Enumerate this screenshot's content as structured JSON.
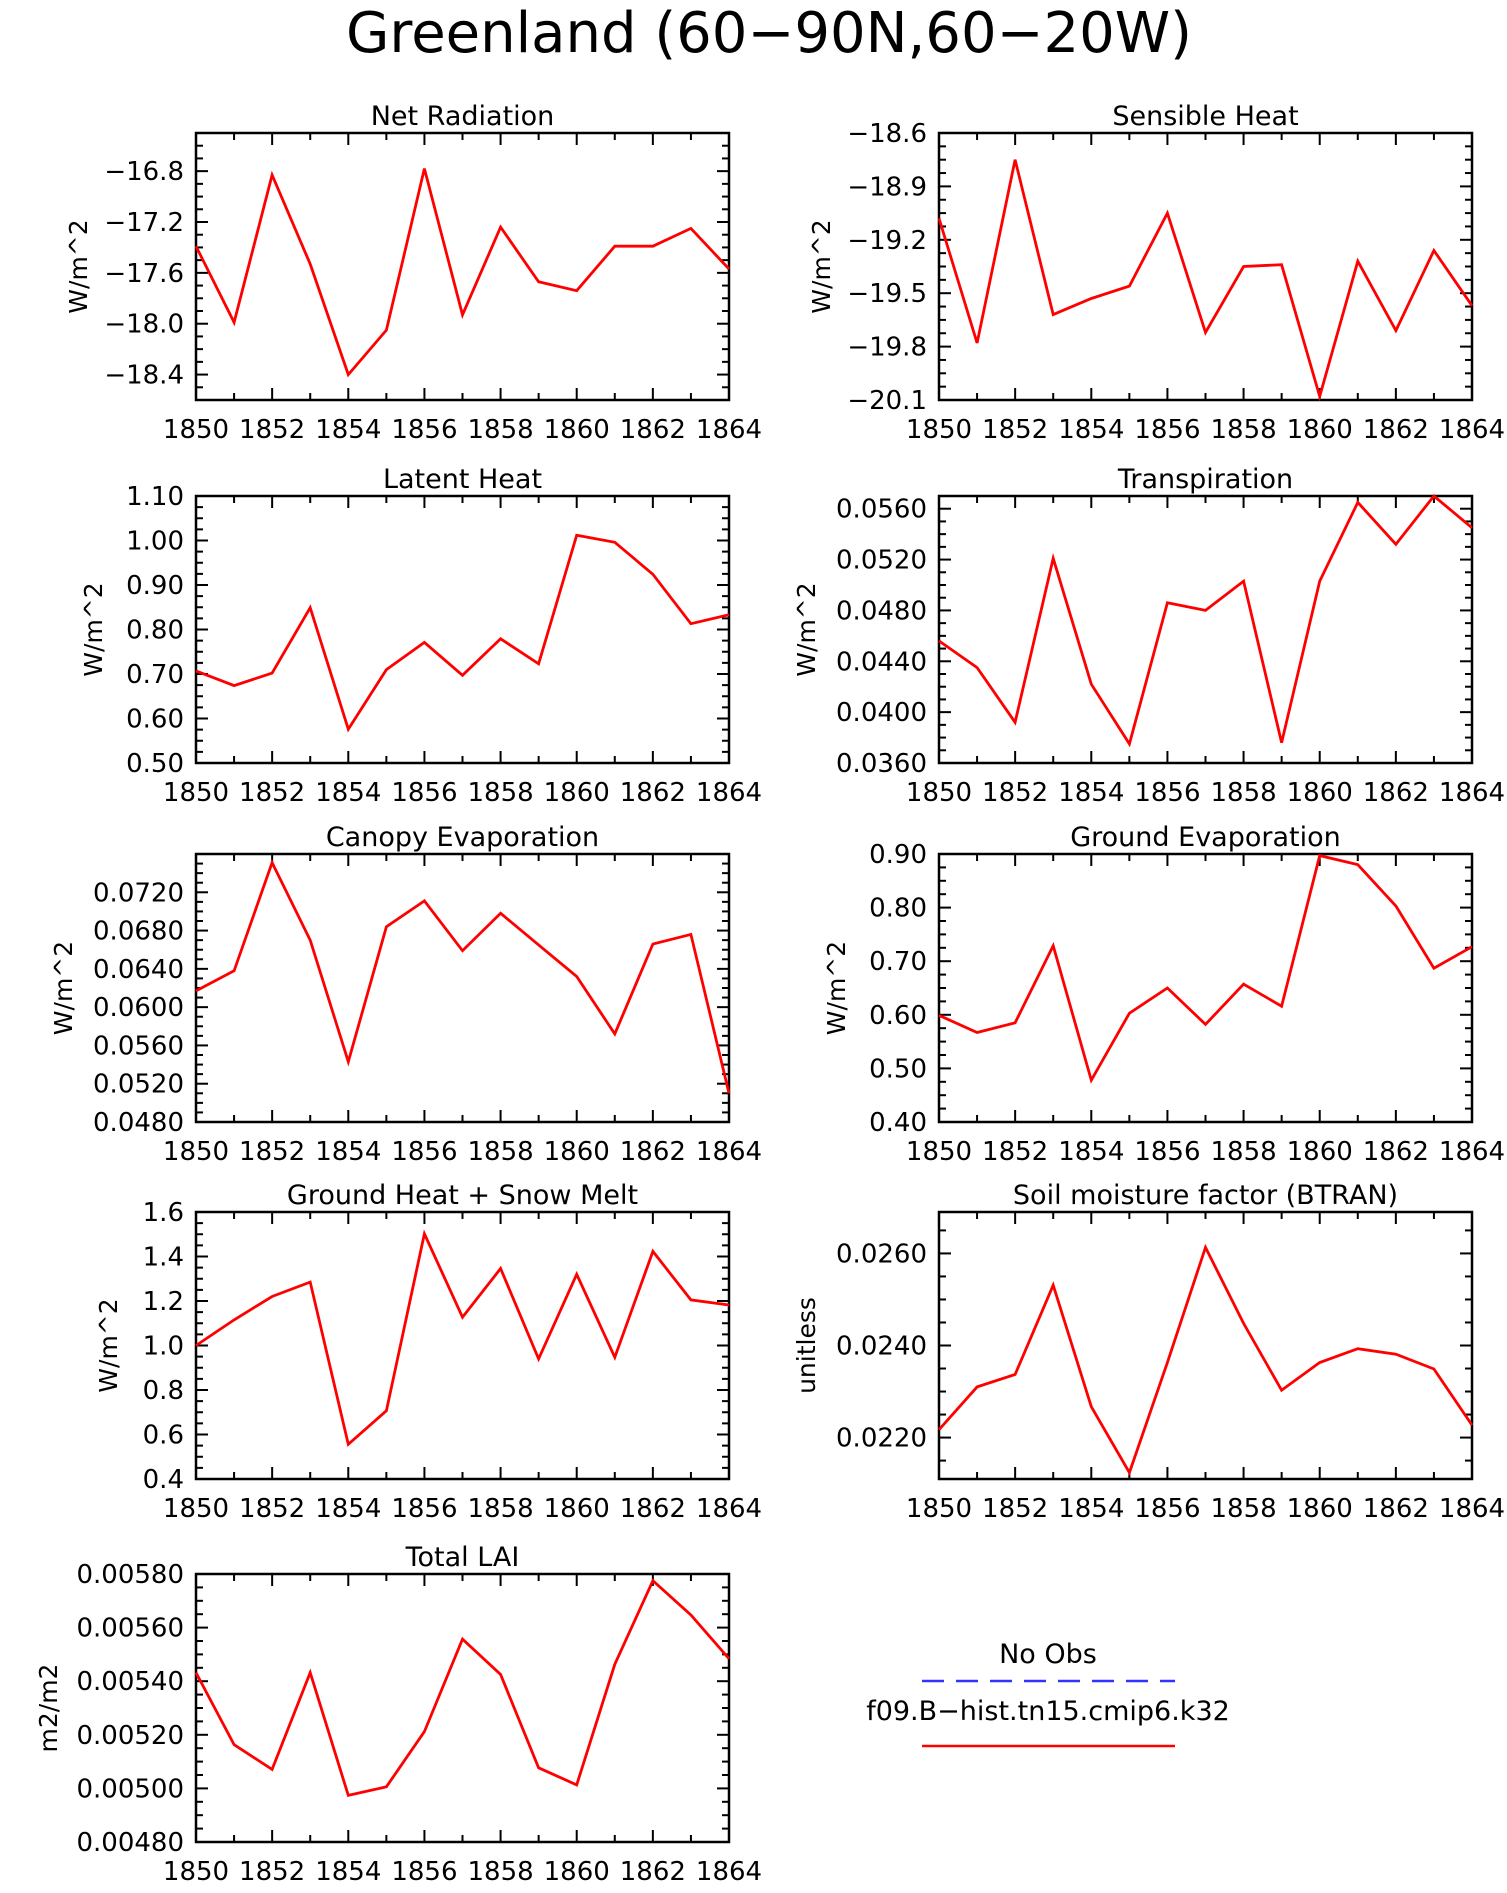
{
  "figure_title": "Greenland (60−90N,60−20W)",
  "chart_data": [
    {
      "type": "line",
      "title": "Net Radiation",
      "ylabel": "W/m^2",
      "x": [
        1850,
        1851,
        1852,
        1853,
        1854,
        1855,
        1856,
        1857,
        1858,
        1859,
        1860,
        1861,
        1862,
        1863,
        1864
      ],
      "xticks": [
        1850,
        1852,
        1854,
        1856,
        1858,
        1860,
        1862,
        1864
      ],
      "ylim": [
        -18.6,
        -16.5
      ],
      "yticks": [
        -16.8,
        -17.2,
        -17.6,
        -18.0,
        -18.4
      ],
      "ytick_labels": [
        "−16.8",
        "−17.2",
        "−17.6",
        "−18.0",
        "−18.4"
      ],
      "series": [
        {
          "color": "#ff0000",
          "values": [
            -17.39,
            -17.99,
            -16.83,
            -17.53,
            -18.4,
            -18.05,
            -16.78,
            -17.93,
            -17.24,
            -17.67,
            -17.74,
            -17.39,
            -17.39,
            -17.25,
            -17.57
          ]
        }
      ]
    },
    {
      "type": "line",
      "title": "Sensible Heat",
      "ylabel": "W/m^2",
      "x": [
        1850,
        1851,
        1852,
        1853,
        1854,
        1855,
        1856,
        1857,
        1858,
        1859,
        1860,
        1861,
        1862,
        1863,
        1864
      ],
      "xticks": [
        1850,
        1852,
        1854,
        1856,
        1858,
        1860,
        1862,
        1864
      ],
      "ylim": [
        -20.1,
        -18.6
      ],
      "yticks": [
        -18.6,
        -18.9,
        -19.2,
        -19.5,
        -19.8,
        -20.1
      ],
      "ytick_labels": [
        "−18.6",
        "−18.9",
        "−19.2",
        "−19.5",
        "−19.8",
        "−20.1"
      ],
      "series": [
        {
          "color": "#ff0000",
          "values": [
            -19.08,
            -19.78,
            -18.75,
            -19.62,
            -19.53,
            -19.46,
            -19.05,
            -19.72,
            -19.35,
            -19.34,
            -20.08,
            -19.32,
            -19.71,
            -19.26,
            -19.57
          ]
        }
      ]
    },
    {
      "type": "line",
      "title": "Latent Heat",
      "ylabel": "W/m^2",
      "x": [
        1850,
        1851,
        1852,
        1853,
        1854,
        1855,
        1856,
        1857,
        1858,
        1859,
        1860,
        1861,
        1862,
        1863,
        1864
      ],
      "xticks": [
        1850,
        1852,
        1854,
        1856,
        1858,
        1860,
        1862,
        1864
      ],
      "ylim": [
        0.5,
        1.1
      ],
      "yticks": [
        0.5,
        0.6,
        0.7,
        0.8,
        0.9,
        1.0,
        1.1
      ],
      "ytick_labels": [
        "0.50",
        "0.60",
        "0.70",
        "0.80",
        "0.90",
        "1.00",
        "1.10"
      ],
      "series": [
        {
          "color": "#ff0000",
          "values": [
            0.707,
            0.674,
            0.702,
            0.849,
            0.576,
            0.71,
            0.771,
            0.697,
            0.779,
            0.723,
            1.012,
            0.996,
            0.924,
            0.813,
            0.833
          ]
        }
      ]
    },
    {
      "type": "line",
      "title": "Transpiration",
      "ylabel": "W/m^2",
      "x": [
        1850,
        1851,
        1852,
        1853,
        1854,
        1855,
        1856,
        1857,
        1858,
        1859,
        1860,
        1861,
        1862,
        1863,
        1864
      ],
      "xticks": [
        1850,
        1852,
        1854,
        1856,
        1858,
        1860,
        1862,
        1864
      ],
      "ylim": [
        0.036,
        0.057
      ],
      "yticks": [
        0.036,
        0.04,
        0.044,
        0.048,
        0.052,
        0.056
      ],
      "ytick_labels": [
        "0.0360",
        "0.0400",
        "0.0440",
        "0.0480",
        "0.0520",
        "0.0560"
      ],
      "series": [
        {
          "color": "#ff0000",
          "values": [
            0.0456,
            0.0435,
            0.0392,
            0.0521,
            0.0422,
            0.0375,
            0.0486,
            0.048,
            0.0503,
            0.0376,
            0.0503,
            0.0565,
            0.0532,
            0.057,
            0.0545
          ]
        }
      ]
    },
    {
      "type": "line",
      "title": "Canopy Evaporation",
      "ylabel": "W/m^2",
      "x": [
        1850,
        1851,
        1852,
        1853,
        1854,
        1855,
        1856,
        1857,
        1858,
        1859,
        1860,
        1861,
        1862,
        1863,
        1864
      ],
      "xticks": [
        1850,
        1852,
        1854,
        1856,
        1858,
        1860,
        1862,
        1864
      ],
      "ylim": [
        0.048,
        0.076
      ],
      "yticks": [
        0.048,
        0.052,
        0.056,
        0.06,
        0.064,
        0.068,
        0.072
      ],
      "ytick_labels": [
        "0.0480",
        "0.0520",
        "0.0560",
        "0.0600",
        "0.0640",
        "0.0680",
        "0.0720"
      ],
      "series": [
        {
          "color": "#ff0000",
          "values": [
            0.0617,
            0.0638,
            0.0751,
            0.067,
            0.0543,
            0.0684,
            0.0711,
            0.0659,
            0.0698,
            0.0665,
            0.0632,
            0.0572,
            0.0666,
            0.0676,
            0.051
          ]
        }
      ]
    },
    {
      "type": "line",
      "title": "Ground Evaporation",
      "ylabel": "W/m^2",
      "x": [
        1850,
        1851,
        1852,
        1853,
        1854,
        1855,
        1856,
        1857,
        1858,
        1859,
        1860,
        1861,
        1862,
        1863,
        1864
      ],
      "xticks": [
        1850,
        1852,
        1854,
        1856,
        1858,
        1860,
        1862,
        1864
      ],
      "ylim": [
        0.4,
        0.9
      ],
      "yticks": [
        0.4,
        0.5,
        0.6,
        0.7,
        0.8,
        0.9
      ],
      "ytick_labels": [
        "0.40",
        "0.50",
        "0.60",
        "0.70",
        "0.80",
        "0.90"
      ],
      "series": [
        {
          "color": "#ff0000",
          "values": [
            0.599,
            0.567,
            0.585,
            0.729,
            0.478,
            0.603,
            0.65,
            0.582,
            0.657,
            0.616,
            0.897,
            0.88,
            0.803,
            0.687,
            0.727
          ]
        }
      ]
    },
    {
      "type": "line",
      "title": "Ground Heat + Snow Melt",
      "ylabel": "W/m^2",
      "x": [
        1850,
        1851,
        1852,
        1853,
        1854,
        1855,
        1856,
        1857,
        1858,
        1859,
        1860,
        1861,
        1862,
        1863,
        1864
      ],
      "xticks": [
        1850,
        1852,
        1854,
        1856,
        1858,
        1860,
        1862,
        1864
      ],
      "ylim": [
        0.4,
        1.6
      ],
      "yticks": [
        0.4,
        0.6,
        0.8,
        1.0,
        1.2,
        1.4,
        1.6
      ],
      "ytick_labels": [
        "0.4",
        "0.6",
        "0.8",
        "1.0",
        "1.2",
        "1.4",
        "1.6"
      ],
      "series": [
        {
          "color": "#ff0000",
          "values": [
            1.0,
            1.115,
            1.22,
            1.285,
            0.556,
            0.707,
            1.502,
            1.127,
            1.346,
            0.94,
            1.32,
            0.947,
            1.423,
            1.205,
            1.182
          ]
        }
      ]
    },
    {
      "type": "line",
      "title": "Soil moisture factor (BTRAN)",
      "ylabel": "unitless",
      "x": [
        1850,
        1851,
        1852,
        1853,
        1854,
        1855,
        1856,
        1857,
        1858,
        1859,
        1860,
        1861,
        1862,
        1863,
        1864
      ],
      "xticks": [
        1850,
        1852,
        1854,
        1856,
        1858,
        1860,
        1862,
        1864
      ],
      "ylim": [
        0.0211,
        0.0269
      ],
      "yticks": [
        0.022,
        0.024,
        0.026
      ],
      "ytick_labels": [
        "0.0220",
        "0.0240",
        "0.0260"
      ],
      "series": [
        {
          "color": "#ff0000",
          "values": [
            0.02217,
            0.0231,
            0.02337,
            0.02531,
            0.02267,
            0.02124,
            0.02363,
            0.02613,
            0.02448,
            0.02303,
            0.02363,
            0.02393,
            0.02381,
            0.02349,
            0.02227
          ]
        }
      ]
    },
    {
      "type": "line",
      "title": "Total LAI",
      "ylabel": "m2/m2",
      "x": [
        1850,
        1851,
        1852,
        1853,
        1854,
        1855,
        1856,
        1857,
        1858,
        1859,
        1860,
        1861,
        1862,
        1863,
        1864
      ],
      "xticks": [
        1850,
        1852,
        1854,
        1856,
        1858,
        1860,
        1862,
        1864
      ],
      "ylim": [
        0.0048,
        0.0058
      ],
      "yticks": [
        0.0048,
        0.005,
        0.0052,
        0.0054,
        0.0056,
        0.0058
      ],
      "ytick_labels": [
        "0.00480",
        "0.00500",
        "0.00520",
        "0.00540",
        "0.00560",
        "0.00580"
      ],
      "series": [
        {
          "color": "#ff0000",
          "values": [
            0.005432,
            0.005163,
            0.005071,
            0.005432,
            0.004974,
            0.005006,
            0.005212,
            0.005557,
            0.005425,
            0.005077,
            0.005013,
            0.005463,
            0.005775,
            0.005647,
            0.005484
          ]
        }
      ]
    }
  ],
  "legend": {
    "items": [
      {
        "label": "No Obs",
        "color": "#3333ff",
        "style": "dashed"
      },
      {
        "label": "f09.B−hist.tn15.cmip6.k32",
        "color": "#ff0000",
        "style": "solid"
      }
    ]
  }
}
